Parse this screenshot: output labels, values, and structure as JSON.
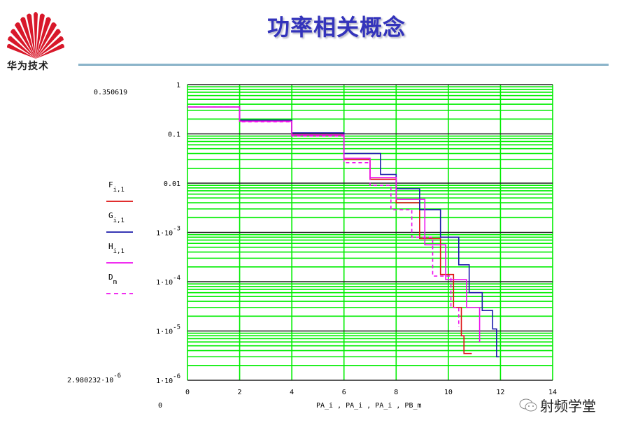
{
  "header": {
    "logo_text": "华为技术",
    "title": "功率相关概念"
  },
  "watermark": {
    "text": "射频学堂",
    "icon": "wechat-icon"
  },
  "colors": {
    "title": "#3333bb",
    "grid_minor": "#00ee00",
    "grid_major": "#222222",
    "series_F": "#dd1111",
    "series_G": "#1a1aaa",
    "series_H": "#ee11ee",
    "series_D": "#ee11ee"
  },
  "chart_data": {
    "type": "line",
    "title": "功率相关概念",
    "xlabel": "PA_i , PA_i , PA_i , PB_m",
    "ylabel": "",
    "xlim": [
      0,
      14
    ],
    "ylim": [
      2.980232e-06,
      1
    ],
    "yscale": "log",
    "x_ticks": [
      "0",
      "2",
      "4",
      "6",
      "8",
      "10",
      "12",
      "14"
    ],
    "y_ticks": [
      "1",
      "0.1",
      "0.01",
      "1·10^-3",
      "1·10^-4",
      "1·10^-5",
      "1·10^-6"
    ],
    "annotations": {
      "y_top_value": "0.350619",
      "y_bottom_value": "2.980232·10^-6",
      "x_left_value": "0",
      "x_right_value": "14"
    },
    "grid": true,
    "legend_position": "left",
    "series": [
      {
        "name": "F_i,1",
        "style": "solid",
        "color": "#dd1111",
        "x": [
          0,
          2,
          4,
          6,
          7,
          8,
          8.9,
          9.7,
          10.2,
          10.5,
          10.6,
          10.9
        ],
        "y": [
          0.35,
          0.18,
          0.095,
          0.03,
          0.012,
          0.004,
          0.00075,
          0.00014,
          3e-05,
          8e-06,
          3.5e-06,
          3.5e-06
        ]
      },
      {
        "name": "G_i,1",
        "style": "solid",
        "color": "#1a1aaa",
        "x": [
          0,
          2,
          4,
          6,
          7.4,
          8,
          8.9,
          9.7,
          10.4,
          10.8,
          11.3,
          11.7,
          11.85,
          11.95
        ],
        "y": [
          0.35,
          0.19,
          0.105,
          0.04,
          0.015,
          0.0077,
          0.0029,
          0.0008,
          0.00022,
          6e-05,
          2.6e-05,
          1.1e-05,
          3e-06,
          3e-06
        ]
      },
      {
        "name": "H_i,1",
        "style": "solid",
        "color": "#ee11ee",
        "x": [
          0,
          2,
          4,
          6,
          7,
          8,
          9.1,
          9.9,
          10.7,
          11.2
        ],
        "y": [
          0.35,
          0.18,
          0.095,
          0.032,
          0.013,
          0.0047,
          0.00056,
          0.00011,
          3e-05,
          6e-06
        ]
      },
      {
        "name": "D_m",
        "style": "dashed",
        "color": "#ee11ee",
        "x": [
          0,
          2,
          4,
          6,
          7,
          7.8,
          8.6,
          9.4,
          10.1,
          10.4
        ],
        "y": [
          0.35,
          0.175,
          0.09,
          0.026,
          0.009,
          0.0029,
          0.0008,
          0.00013,
          3e-05,
          1.2e-05
        ]
      }
    ]
  }
}
